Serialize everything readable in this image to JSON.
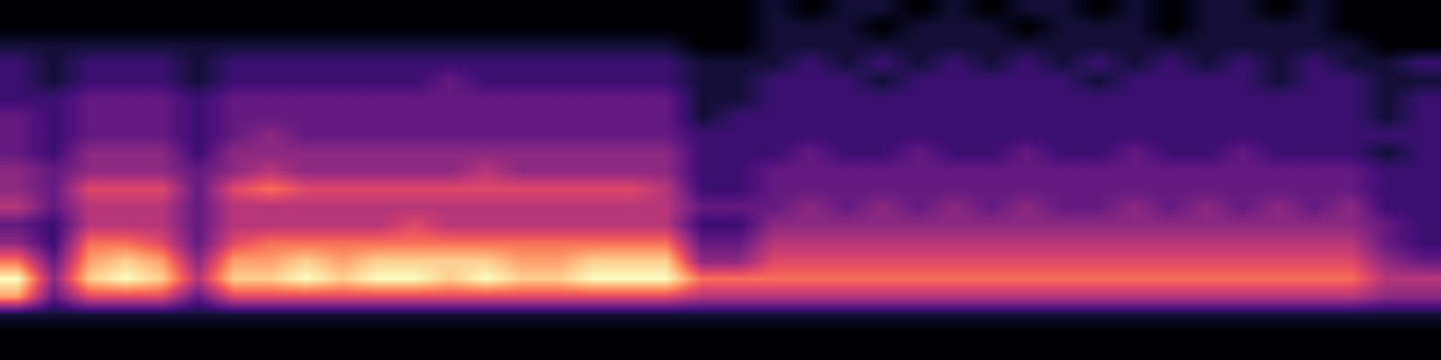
{
  "chart_data": {
    "type": "heatmap",
    "color": "magma",
    "tick_labels": false,
    "cells": [
      [
        0,
        0,
        0,
        0,
        0,
        0,
        0,
        0,
        0,
        0,
        0,
        0,
        0,
        0,
        0,
        0,
        0,
        0,
        0,
        0,
        0,
        1,
        0,
        1,
        1,
        0,
        1,
        0,
        1,
        1,
        0,
        1,
        0,
        1,
        1,
        0,
        1,
        0,
        0,
        0
      ],
      [
        0,
        0,
        0,
        0,
        0,
        0,
        0,
        0,
        0,
        0,
        0,
        0,
        0,
        0,
        0,
        0,
        0,
        0,
        0,
        0,
        0,
        1,
        1,
        1,
        0,
        1,
        1,
        1,
        0,
        1,
        1,
        1,
        0,
        1,
        1,
        1,
        1,
        0,
        0,
        0
      ],
      [
        1,
        1,
        1,
        1,
        1,
        1,
        1,
        1,
        1,
        1,
        1,
        1,
        1,
        1,
        1,
        1,
        1,
        1,
        1,
        0,
        0,
        1,
        1,
        1,
        1,
        1,
        1,
        1,
        1,
        1,
        1,
        1,
        1,
        1,
        1,
        1,
        1,
        1,
        0,
        0
      ],
      [
        2,
        1,
        2,
        2,
        2,
        1,
        2,
        2,
        2,
        2,
        2,
        2,
        2,
        2,
        2,
        2,
        2,
        2,
        2,
        1,
        1,
        1,
        2,
        1,
        2,
        1,
        2,
        1,
        2,
        1,
        2,
        1,
        2,
        1,
        2,
        1,
        2,
        1,
        1,
        2
      ],
      [
        2,
        1,
        2,
        2,
        2,
        1,
        2,
        2,
        2,
        2,
        2,
        2,
        3,
        2,
        2,
        2,
        2,
        2,
        2,
        1,
        1,
        2,
        2,
        2,
        1,
        2,
        2,
        2,
        2,
        2,
        1,
        2,
        2,
        2,
        2,
        1,
        2,
        2,
        1,
        1
      ],
      [
        2,
        2,
        3,
        3,
        3,
        2,
        3,
        3,
        3,
        3,
        3,
        3,
        3,
        3,
        3,
        3,
        3,
        3,
        3,
        1,
        1,
        2,
        2,
        2,
        2,
        2,
        2,
        2,
        2,
        2,
        2,
        2,
        2,
        2,
        2,
        2,
        2,
        2,
        1,
        2
      ],
      [
        3,
        2,
        3,
        3,
        3,
        2,
        3,
        3,
        3,
        3,
        3,
        3,
        3,
        3,
        3,
        3,
        3,
        3,
        3,
        1,
        2,
        2,
        2,
        2,
        2,
        2,
        2,
        2,
        2,
        2,
        2,
        2,
        2,
        2,
        2,
        2,
        2,
        2,
        1,
        2
      ],
      [
        3,
        2,
        3,
        3,
        3,
        2,
        3,
        4,
        3,
        3,
        3,
        3,
        3,
        3,
        3,
        3,
        3,
        3,
        3,
        2,
        2,
        2,
        2,
        2,
        2,
        2,
        2,
        2,
        2,
        2,
        2,
        2,
        2,
        2,
        2,
        2,
        2,
        2,
        2,
        2
      ],
      [
        3,
        2,
        4,
        4,
        4,
        2,
        4,
        4,
        4,
        4,
        4,
        4,
        4,
        4,
        4,
        4,
        4,
        4,
        4,
        2,
        2,
        2,
        3,
        2,
        2,
        3,
        2,
        2,
        3,
        2,
        2,
        3,
        2,
        2,
        3,
        2,
        2,
        2,
        1,
        2
      ],
      [
        4,
        3,
        4,
        4,
        4,
        3,
        4,
        5,
        4,
        4,
        4,
        4,
        4,
        5,
        4,
        4,
        4,
        4,
        4,
        2,
        2,
        3,
        3,
        3,
        3,
        3,
        3,
        3,
        3,
        3,
        3,
        3,
        3,
        3,
        3,
        3,
        3,
        3,
        2,
        2
      ],
      [
        4,
        3,
        6,
        6,
        6,
        3,
        6,
        7,
        6,
        6,
        6,
        6,
        6,
        6,
        6,
        6,
        6,
        6,
        5,
        2,
        2,
        3,
        3,
        3,
        3,
        3,
        3,
        3,
        3,
        3,
        3,
        3,
        3,
        3,
        3,
        3,
        3,
        3,
        2,
        2
      ],
      [
        5,
        3,
        5,
        5,
        5,
        3,
        5,
        5,
        5,
        5,
        5,
        5,
        5,
        5,
        5,
        5,
        5,
        5,
        5,
        3,
        3,
        3,
        4,
        3,
        4,
        3,
        4,
        3,
        4,
        3,
        3,
        4,
        3,
        4,
        3,
        4,
        3,
        4,
        2,
        2
      ],
      [
        3,
        2,
        5,
        5,
        5,
        3,
        5,
        5,
        5,
        5,
        5,
        6,
        5,
        5,
        5,
        5,
        5,
        5,
        5,
        2,
        2,
        4,
        4,
        4,
        4,
        4,
        4,
        4,
        4,
        4,
        4,
        4,
        4,
        4,
        4,
        4,
        4,
        4,
        3,
        2
      ],
      [
        4,
        2,
        7,
        7,
        6,
        3,
        6,
        7,
        7,
        7,
        7,
        7,
        7,
        7,
        7,
        7,
        7,
        7,
        7,
        3,
        3,
        5,
        5,
        5,
        5,
        5,
        5,
        5,
        5,
        5,
        5,
        5,
        5,
        5,
        5,
        5,
        5,
        5,
        3,
        2
      ],
      [
        7,
        3,
        8,
        9,
        8,
        4,
        8,
        8,
        9,
        8,
        9,
        9,
        9,
        9,
        8,
        8,
        9,
        9,
        9,
        4,
        4,
        6,
        6,
        6,
        6,
        6,
        6,
        6,
        6,
        6,
        6,
        6,
        6,
        6,
        6,
        6,
        6,
        6,
        4,
        3
      ],
      [
        10,
        4,
        9,
        10,
        9,
        5,
        9,
        9,
        10,
        9,
        10,
        10,
        9,
        10,
        9,
        9,
        10,
        10,
        10,
        7,
        7,
        7,
        7,
        7,
        7,
        7,
        7,
        7,
        7,
        7,
        7,
        7,
        7,
        7,
        7,
        7,
        7,
        7,
        5,
        5
      ],
      [
        8,
        3,
        6,
        6,
        6,
        3,
        6,
        6,
        6,
        6,
        6,
        6,
        6,
        6,
        6,
        6,
        6,
        6,
        6,
        5,
        5,
        5,
        5,
        5,
        5,
        5,
        5,
        5,
        5,
        5,
        5,
        5,
        5,
        5,
        5,
        5,
        5,
        5,
        4,
        4
      ],
      [
        1,
        1,
        1,
        1,
        1,
        1,
        1,
        1,
        1,
        1,
        1,
        1,
        1,
        1,
        1,
        1,
        1,
        1,
        1,
        1,
        1,
        1,
        1,
        1,
        1,
        1,
        1,
        1,
        1,
        1,
        1,
        1,
        1,
        1,
        1,
        1,
        1,
        1,
        1,
        1
      ],
      [
        0,
        0,
        0,
        0,
        0,
        0,
        0,
        0,
        0,
        0,
        0,
        0,
        0,
        0,
        0,
        0,
        0,
        0,
        0,
        0,
        0,
        0,
        0,
        0,
        0,
        0,
        0,
        0,
        0,
        0,
        0,
        0,
        0,
        0,
        0,
        0,
        0,
        0,
        0,
        0
      ],
      [
        0,
        0,
        0,
        0,
        0,
        0,
        0,
        0,
        0,
        0,
        0,
        0,
        0,
        0,
        0,
        0,
        0,
        0,
        0,
        0,
        0,
        0,
        0,
        0,
        0,
        0,
        0,
        0,
        0,
        0,
        0,
        0,
        0,
        0,
        0,
        0,
        0,
        0,
        0,
        0
      ]
    ]
  }
}
